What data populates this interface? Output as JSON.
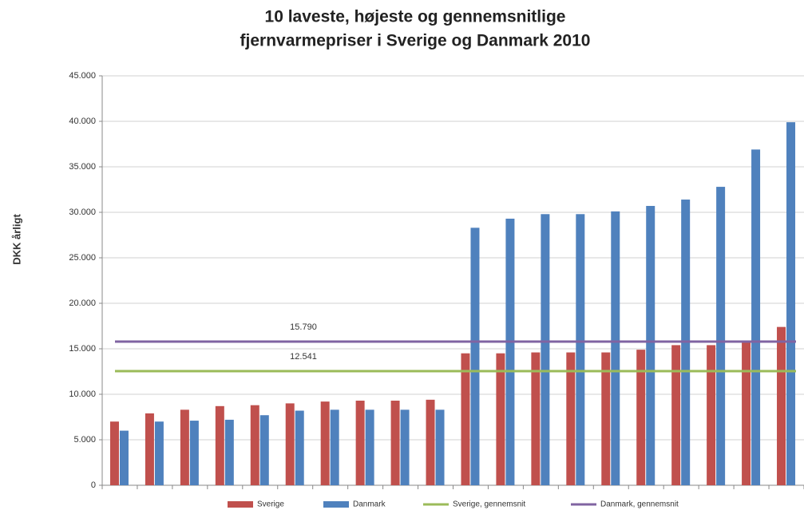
{
  "chart_data": {
    "type": "bar",
    "title": [
      "10 laveste, højeste og gennemsnitlige",
      "fjernvarmepriser i Sverige og Danmark 2010"
    ],
    "y_label": "DKK årligt",
    "categories": [
      null,
      null,
      null,
      null,
      null,
      null,
      null,
      null,
      null,
      null,
      null,
      null,
      null,
      null,
      null,
      null,
      null,
      null,
      null,
      null
    ],
    "series": [
      {
        "name": "Sverige",
        "color": "#c0504d",
        "values": [
          7000,
          7900,
          8300,
          8700,
          8800,
          9000,
          9200,
          9300,
          9300,
          9400,
          14500,
          14500,
          14600,
          14600,
          14600,
          14900,
          15400,
          15400,
          15800,
          17400
        ]
      },
      {
        "name": "Danmark",
        "color": "#4f81bd",
        "values": [
          6000,
          7000,
          7100,
          7200,
          7700,
          8200,
          8300,
          8300,
          8300,
          8300,
          28300,
          29300,
          29800,
          29800,
          30100,
          30700,
          31400,
          32800,
          36900,
          39900
        ]
      }
    ],
    "reference_lines": [
      {
        "name": "Sverige, gennemsnit",
        "color": "#9bbb59",
        "value": 12541,
        "value_label": "12.541"
      },
      {
        "name": "Danmark, gennemsnit",
        "color": "#8064a2",
        "value": 15790,
        "value_label": "15.790"
      }
    ],
    "ylim": [
      0,
      45000
    ],
    "yticks": [
      0,
      {
        "value": 5000,
        "label": "5.000"
      },
      {
        "value": 10000,
        "label": "10.000"
      },
      {
        "value": 15000,
        "label": "15.000"
      },
      {
        "value": 20000,
        "label": "20.000"
      },
      {
        "value": 25000,
        "label": "25.000"
      },
      {
        "value": 30000,
        "label": "30.000"
      },
      {
        "value": 35000,
        "label": "35.000"
      },
      {
        "value": 40000,
        "label": "40.000"
      },
      {
        "value": 45000,
        "label": "45.000"
      }
    ],
    "grid": true,
    "legend": "bottom"
  }
}
